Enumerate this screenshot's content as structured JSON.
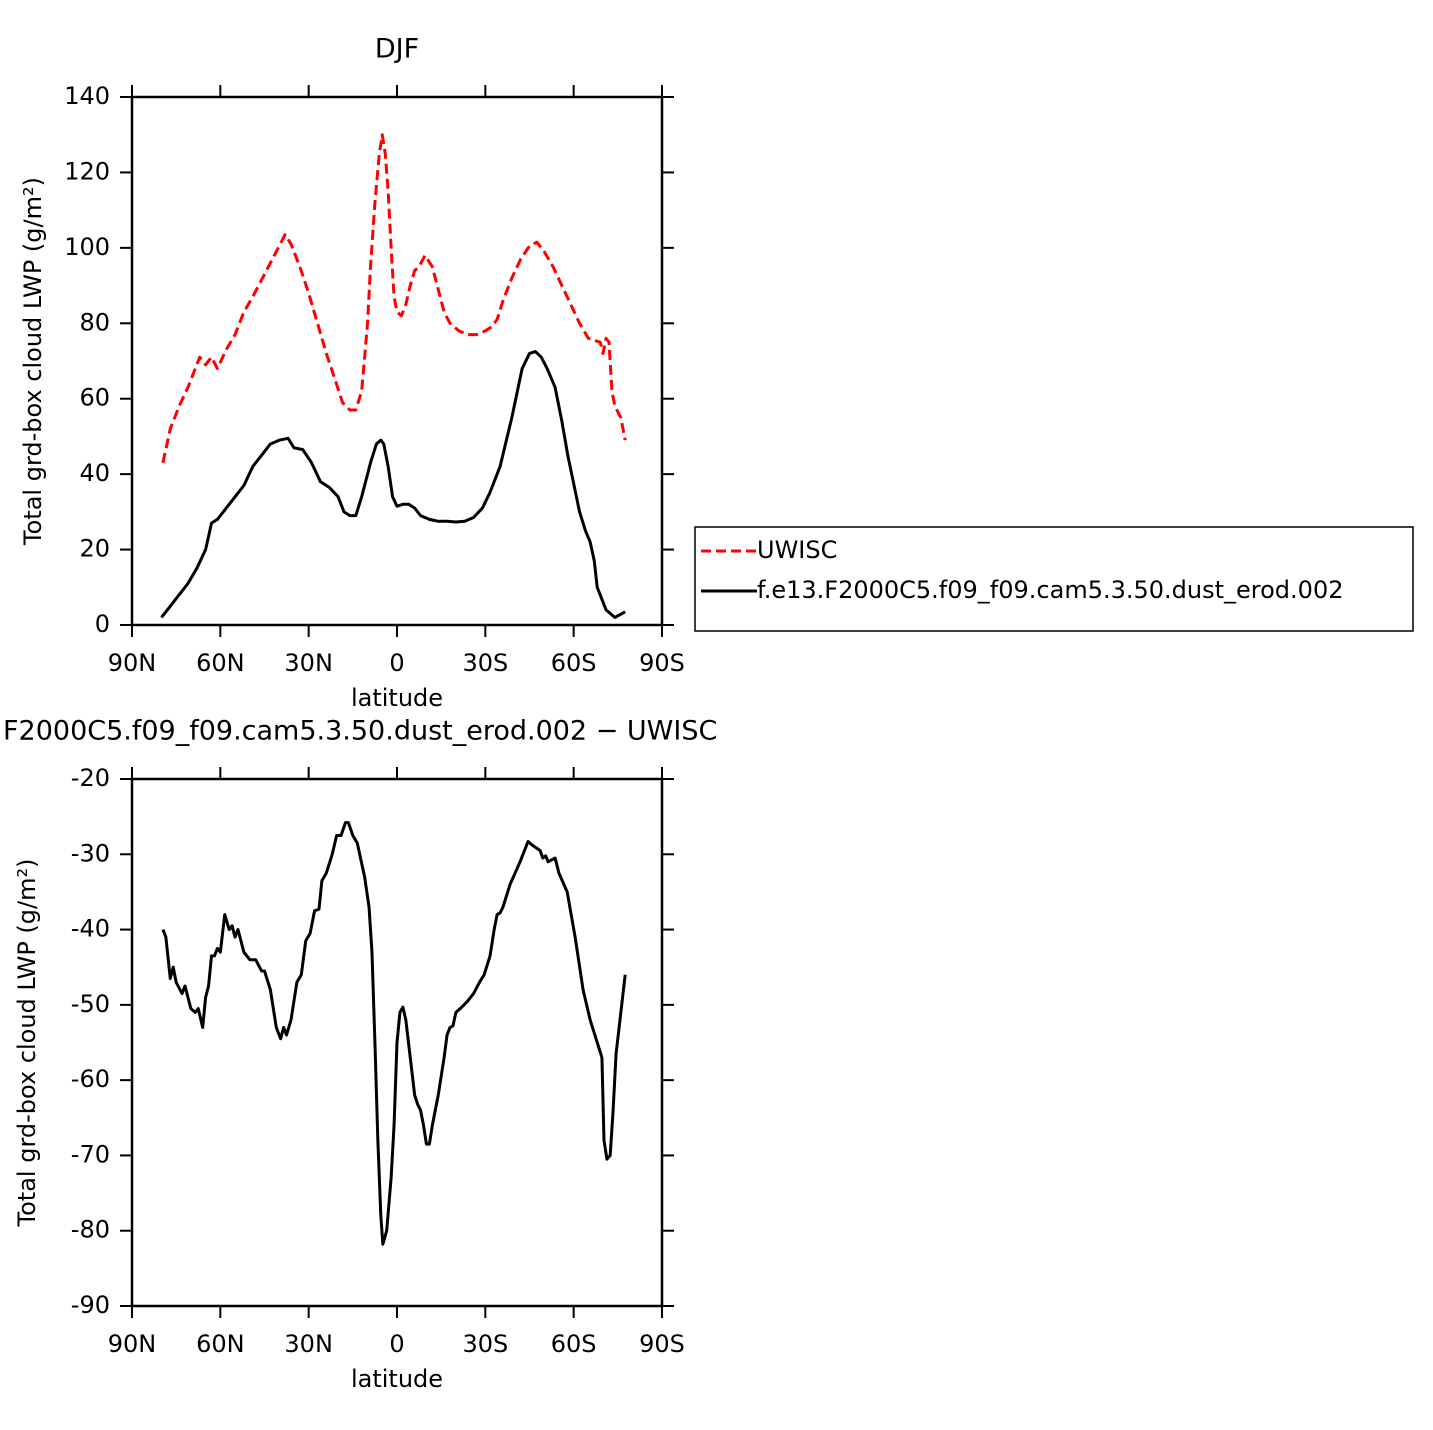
{
  "chart_data": [
    {
      "type": "line",
      "title": "DJF",
      "xlabel": "latitude",
      "ylabel": "Total grd-box cloud LWP (g/m²)",
      "xlim": [
        90,
        -90
      ],
      "xticks": [
        {
          "value": 90,
          "label": "90N"
        },
        {
          "value": 60,
          "label": "60N"
        },
        {
          "value": 30,
          "label": "30N"
        },
        0,
        {
          "value": -30,
          "label": "30S"
        },
        {
          "value": -60,
          "label": "60S"
        },
        {
          "value": -90,
          "label": "90S"
        }
      ],
      "ylim": [
        0,
        140
      ],
      "yticks": [
        0,
        20,
        40,
        60,
        80,
        100,
        120,
        140
      ],
      "legend": "right",
      "series": [
        {
          "name": "UWISC",
          "color": "#ff0000",
          "dash": true,
          "x": [
            79.5,
            77,
            74,
            71,
            67,
            65,
            63,
            61,
            58,
            55,
            52,
            49,
            45,
            41,
            38,
            36,
            33,
            30,
            27,
            24,
            21,
            18.5,
            16,
            14,
            12,
            10,
            9,
            7.5,
            6,
            5,
            4,
            3,
            2,
            1,
            0,
            -1.5,
            -3,
            -4.5,
            -6,
            -7.5,
            -9.5,
            -12,
            -14,
            -16,
            -18,
            -21,
            -24,
            -27,
            -30,
            -32,
            -34,
            -36,
            -39,
            -42,
            -45,
            -47.5,
            -50,
            -53,
            -56,
            -59,
            -62,
            -65,
            -67,
            -69,
            -70,
            -71,
            -72,
            -73,
            -74,
            -76,
            -77.5
          ],
          "values": [
            43,
            52,
            58,
            63,
            71,
            69,
            71,
            68,
            73,
            77,
            83,
            87,
            93,
            99,
            103.5,
            101,
            95,
            88,
            80,
            72,
            65,
            59,
            57,
            57,
            62,
            80,
            95,
            112,
            125,
            130,
            125,
            115,
            100,
            87,
            83,
            82,
            85,
            90,
            94,
            95,
            98,
            95,
            89,
            83,
            80,
            78,
            77,
            77,
            78,
            79,
            81,
            86,
            92,
            97,
            100.5,
            101.5,
            99,
            95,
            90,
            85,
            80,
            76,
            75.5,
            75,
            72,
            76,
            75,
            62,
            58,
            55,
            49
          ]
        },
        {
          "name": "f.e13.F2000C5.f09_f09.cam5.3.50.dust_erod.002",
          "color": "#000000",
          "dash": false,
          "x": [
            80,
            77,
            74,
            71,
            68,
            65,
            63,
            61,
            58,
            55,
            52,
            49,
            46,
            43,
            40,
            37,
            35,
            32,
            29,
            26,
            23,
            20,
            18,
            16,
            14,
            12,
            9,
            7,
            5.5,
            4.5,
            3,
            1.5,
            0,
            -2,
            -4,
            -6,
            -8,
            -11,
            -14,
            -17,
            -20,
            -23,
            -26,
            -29,
            -31.5,
            -35,
            -39,
            -42.5,
            -45,
            -47,
            -49,
            -51,
            -53.7,
            -56,
            -58,
            -62,
            -64,
            -65.6,
            -67,
            -68,
            -69,
            -71,
            -74,
            -77.5
          ],
          "values": [
            2,
            5,
            8,
            11,
            15,
            20,
            27,
            28,
            31,
            34,
            37,
            42,
            45,
            48,
            49,
            49.5,
            47,
            46.5,
            43,
            38,
            36.5,
            34,
            30,
            29,
            29,
            34,
            43,
            48,
            49,
            48,
            42,
            34,
            31.5,
            32,
            32,
            31,
            29,
            28,
            27.5,
            27.5,
            27.3,
            27.5,
            28.5,
            31,
            35,
            42,
            55,
            68,
            72,
            72.5,
            71,
            68,
            63,
            54,
            45,
            30,
            25,
            22,
            17,
            10,
            8,
            4,
            2,
            3.5
          ]
        }
      ]
    },
    {
      "type": "line",
      "title": "F2000C5.f09_f09.cam5.3.50.dust_erod.002 − UWISC",
      "xlabel": "latitude",
      "ylabel": "Total grd-box cloud LWP (g/m²)",
      "xlim": [
        90,
        -90
      ],
      "xticks": [
        {
          "value": 90,
          "label": "90N"
        },
        {
          "value": 60,
          "label": "60N"
        },
        {
          "value": 30,
          "label": "30N"
        },
        0,
        {
          "value": -30,
          "label": "30S"
        },
        {
          "value": -60,
          "label": "60S"
        },
        {
          "value": -90,
          "label": "90S"
        }
      ],
      "ylim": [
        -90,
        -20
      ],
      "yticks": [
        -90,
        -80,
        -70,
        -60,
        -50,
        -40,
        -30,
        -20
      ],
      "series": [
        {
          "color": "#000000",
          "dash": false,
          "x": [
            79.5,
            78.5,
            77,
            76,
            75,
            73,
            72,
            71,
            70,
            68.5,
            67.5,
            66,
            65,
            64,
            63,
            62,
            61,
            60,
            58.5,
            57,
            56,
            55,
            54,
            52,
            50,
            48,
            46,
            45,
            43,
            41,
            39.5,
            38.5,
            37.5,
            36,
            34,
            32.5,
            31,
            29.5,
            28,
            26.5,
            25.5,
            24,
            22,
            20.5,
            19,
            17.5,
            16.5,
            15,
            13.5,
            11,
            9.5,
            8.5,
            7.5,
            6.5,
            5.5,
            4.8,
            3.5,
            2,
            1,
            0,
            -1,
            -2,
            -3,
            -4.5,
            -6,
            -7,
            -8,
            -9,
            -10,
            -11,
            -12,
            -14,
            -16,
            -17,
            -18,
            -19,
            -20,
            -22,
            -24,
            -26,
            -28,
            -29.6,
            -31.6,
            -33,
            -34,
            -35,
            -36,
            -38.4,
            -41.8,
            -44.5,
            -46,
            -48.6,
            -49.5,
            -50.5,
            -51.3,
            -53.7,
            -55,
            -57.8,
            -60.5,
            -63.2,
            -65.6,
            -68,
            -69.6,
            -70.3,
            -71.3,
            -72.4,
            -73.4,
            -74.4,
            -77.5
          ],
          "values": [
            -40,
            -41,
            -46.5,
            -45,
            -47,
            -48.5,
            -47.5,
            -49,
            -50.5,
            -51,
            -50.5,
            -53,
            -49,
            -47.5,
            -43.5,
            -43.5,
            -42.5,
            -43,
            -38,
            -40,
            -39.5,
            -41,
            -40,
            -43,
            -44,
            -44,
            -45.5,
            -45.5,
            -48,
            -53,
            -54.5,
            -53,
            -54,
            -52,
            -47,
            -46,
            -41.5,
            -40.5,
            -37.5,
            -37.3,
            -33.5,
            -32.5,
            -30,
            -27.5,
            -27.5,
            -25.8,
            -25.8,
            -27.5,
            -28.5,
            -33,
            -37,
            -43,
            -55,
            -68,
            -78,
            -81.8,
            -80,
            -73,
            -66,
            -55,
            -51,
            -50.3,
            -52,
            -57,
            -62,
            -63.2,
            -64,
            -66,
            -68.5,
            -68.5,
            -66,
            -62,
            -57,
            -54,
            -53,
            -52.8,
            -51,
            -50.3,
            -49.5,
            -48.5,
            -47,
            -46,
            -43.5,
            -40,
            -38,
            -37.8,
            -37,
            -34,
            -31,
            -28.3,
            -28.8,
            -29.5,
            -30.5,
            -30.2,
            -31,
            -30.5,
            -32.5,
            -35,
            -41,
            -48,
            -52,
            -55,
            -57,
            -68,
            -70.5,
            -70,
            -64,
            -56.5,
            -46
          ]
        }
      ]
    }
  ]
}
